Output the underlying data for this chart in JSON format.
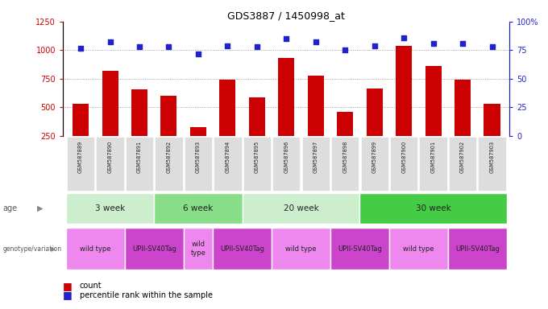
{
  "title": "GDS3887 / 1450998_at",
  "samples": [
    "GSM587889",
    "GSM587890",
    "GSM587891",
    "GSM587892",
    "GSM587893",
    "GSM587894",
    "GSM587895",
    "GSM587896",
    "GSM587897",
    "GSM587898",
    "GSM587899",
    "GSM587900",
    "GSM587901",
    "GSM587902",
    "GSM587903"
  ],
  "counts": [
    530,
    820,
    655,
    600,
    330,
    740,
    590,
    930,
    780,
    460,
    665,
    1040,
    860,
    740,
    530
  ],
  "percentiles": [
    77,
    82,
    78,
    78,
    72,
    79,
    78,
    85,
    82,
    75,
    79,
    86,
    81,
    81,
    78
  ],
  "ylim_left": [
    250,
    1250
  ],
  "ylim_right": [
    0,
    100
  ],
  "yticks_left": [
    250,
    500,
    750,
    1000,
    1250
  ],
  "yticks_right": [
    0,
    25,
    50,
    75,
    100
  ],
  "bar_color": "#cc0000",
  "dot_color": "#2222cc",
  "age_groups": [
    {
      "label": "3 week",
      "start": 0,
      "end": 3,
      "color": "#cceecc"
    },
    {
      "label": "6 week",
      "start": 3,
      "end": 6,
      "color": "#88dd88"
    },
    {
      "label": "20 week",
      "start": 6,
      "end": 10,
      "color": "#cceecc"
    },
    {
      "label": "30 week",
      "start": 10,
      "end": 15,
      "color": "#44cc44"
    }
  ],
  "genotype_groups": [
    {
      "label": "wild type",
      "start": 0,
      "end": 2,
      "color": "#ee88ee"
    },
    {
      "label": "UPII-SV40Tag",
      "start": 2,
      "end": 4,
      "color": "#cc44cc"
    },
    {
      "label": "wild\ntype",
      "start": 4,
      "end": 5,
      "color": "#ee88ee"
    },
    {
      "label": "UPII-SV40Tag",
      "start": 5,
      "end": 7,
      "color": "#cc44cc"
    },
    {
      "label": "wild type",
      "start": 7,
      "end": 9,
      "color": "#ee88ee"
    },
    {
      "label": "UPII-SV40Tag",
      "start": 9,
      "end": 11,
      "color": "#cc44cc"
    },
    {
      "label": "wild type",
      "start": 11,
      "end": 13,
      "color": "#ee88ee"
    },
    {
      "label": "UPII-SV40Tag",
      "start": 13,
      "end": 15,
      "color": "#cc44cc"
    }
  ],
  "tick_label_color_left": "#cc0000",
  "tick_label_color_right": "#2222cc",
  "sample_box_color": "#dddddd",
  "grid_color": "#888888"
}
